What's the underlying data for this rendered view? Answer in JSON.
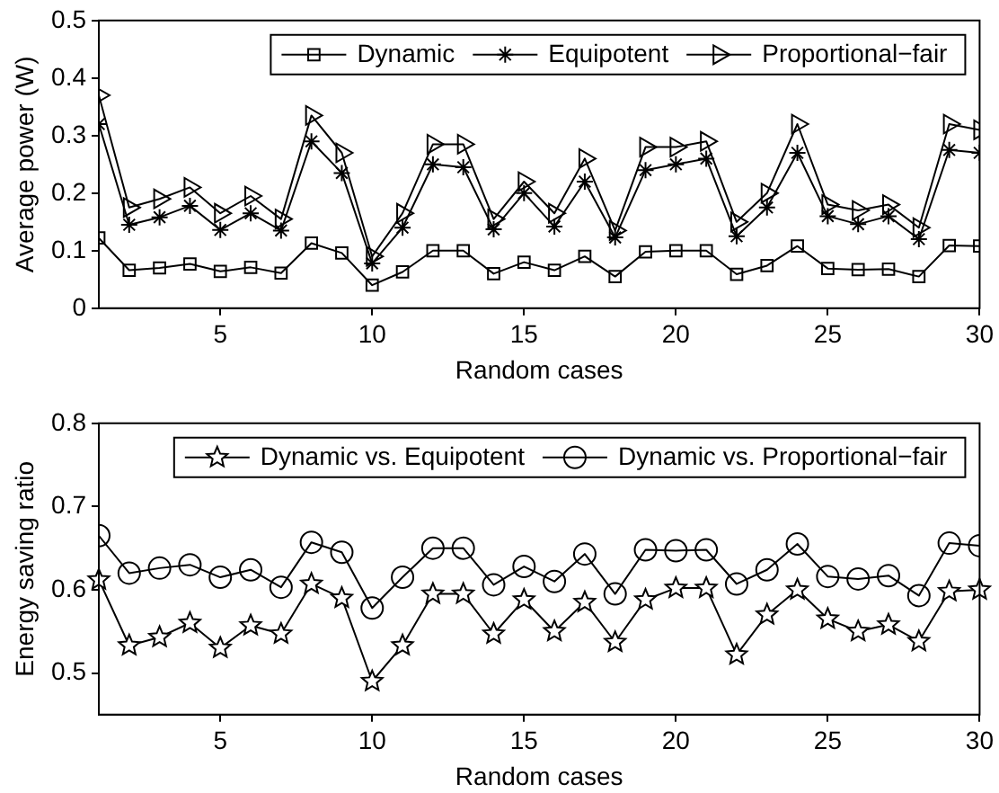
{
  "chart_data": [
    {
      "type": "line",
      "xlabel": "Random cases",
      "ylabel": "Average power (W)",
      "xlim": [
        1,
        30
      ],
      "xticks": [
        5,
        10,
        15,
        20,
        25,
        30
      ],
      "ylim": [
        0,
        0.5
      ],
      "yticks": [
        0,
        0.1,
        0.2,
        0.3,
        0.4,
        0.5
      ],
      "legend": "top right",
      "grid": false,
      "x": [
        1,
        2,
        3,
        4,
        5,
        6,
        7,
        8,
        9,
        10,
        11,
        12,
        13,
        14,
        15,
        16,
        17,
        18,
        19,
        20,
        21,
        22,
        23,
        24,
        25,
        26,
        27,
        28,
        29,
        30
      ],
      "series": [
        {
          "name": "Dynamic",
          "color": "#000000",
          "marker": "square",
          "values": [
            0.122,
            0.066,
            0.07,
            0.077,
            0.064,
            0.071,
            0.061,
            0.113,
            0.096,
            0.04,
            0.063,
            0.1,
            0.1,
            0.06,
            0.08,
            0.066,
            0.09,
            0.055,
            0.098,
            0.1,
            0.1,
            0.059,
            0.074,
            0.108,
            0.069,
            0.067,
            0.068,
            0.055,
            0.109,
            0.108
          ]
        },
        {
          "name": "Equipotent",
          "color": "#000000",
          "marker": "cross",
          "values": [
            0.32,
            0.145,
            0.158,
            0.178,
            0.136,
            0.165,
            0.135,
            0.29,
            0.235,
            0.078,
            0.14,
            0.25,
            0.245,
            0.137,
            0.2,
            0.142,
            0.22,
            0.123,
            0.24,
            0.25,
            0.26,
            0.125,
            0.175,
            0.27,
            0.16,
            0.146,
            0.16,
            0.12,
            0.275,
            0.27
          ]
        },
        {
          "name": "Proportional−fair",
          "color": "#000000",
          "marker": "triangle",
          "values": [
            0.37,
            0.175,
            0.19,
            0.21,
            0.165,
            0.195,
            0.155,
            0.335,
            0.27,
            0.09,
            0.165,
            0.285,
            0.285,
            0.155,
            0.22,
            0.165,
            0.26,
            0.135,
            0.28,
            0.28,
            0.29,
            0.15,
            0.2,
            0.32,
            0.18,
            0.17,
            0.18,
            0.14,
            0.32,
            0.31
          ]
        }
      ]
    },
    {
      "type": "line",
      "xlabel": "Random cases",
      "ylabel": "Energy saving ratio",
      "xlim": [
        1,
        30
      ],
      "xticks": [
        5,
        10,
        15,
        20,
        25,
        30
      ],
      "ylim": [
        0.45,
        0.8
      ],
      "yticks": [
        0.5,
        0.6,
        0.7,
        0.8
      ],
      "legend": "top right",
      "grid": false,
      "x": [
        1,
        2,
        3,
        4,
        5,
        6,
        7,
        8,
        9,
        10,
        11,
        12,
        13,
        14,
        15,
        16,
        17,
        18,
        19,
        20,
        21,
        22,
        23,
        24,
        25,
        26,
        27,
        28,
        29,
        30
      ],
      "series": [
        {
          "name": "Dynamic vs. Equipotent",
          "color": "#000000",
          "marker": "star",
          "values": [
            0.612,
            0.533,
            0.543,
            0.56,
            0.53,
            0.557,
            0.547,
            0.607,
            0.59,
            0.49,
            0.533,
            0.595,
            0.595,
            0.547,
            0.588,
            0.55,
            0.585,
            0.537,
            0.588,
            0.602,
            0.602,
            0.522,
            0.57,
            0.6,
            0.565,
            0.55,
            0.558,
            0.538,
            0.598,
            0.6
          ]
        },
        {
          "name": "Dynamic vs. Proportional−fair",
          "color": "#000000",
          "marker": "circle",
          "values": [
            0.665,
            0.62,
            0.626,
            0.63,
            0.615,
            0.624,
            0.603,
            0.657,
            0.645,
            0.578,
            0.615,
            0.65,
            0.65,
            0.606,
            0.628,
            0.61,
            0.643,
            0.595,
            0.648,
            0.647,
            0.648,
            0.607,
            0.624,
            0.655,
            0.616,
            0.613,
            0.617,
            0.593,
            0.656,
            0.653
          ]
        }
      ]
    }
  ]
}
